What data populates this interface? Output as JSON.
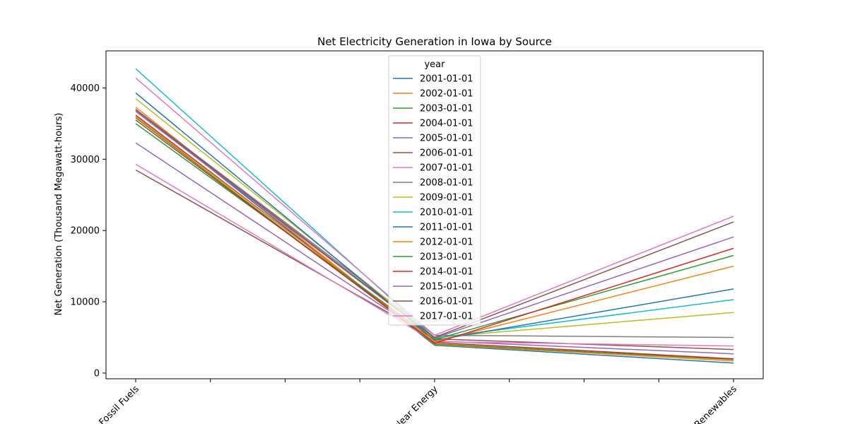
{
  "chart_data": {
    "type": "line",
    "title": "Net Electricity Generation in Iowa by Source",
    "xlabel": "",
    "ylabel": "Net Generation (Thousand Megawatt-hours)",
    "categories": [
      "Fossil Fuels",
      "Nuclear Energy",
      "Renewables"
    ],
    "ylim": [
      -800,
      45200
    ],
    "yticks": [
      0,
      10000,
      20000,
      30000,
      40000
    ],
    "grid": false,
    "legend": {
      "title": "year",
      "placement": "top-center"
    },
    "series": [
      {
        "name": "2001-01-01",
        "color": "#1f77b4",
        "values": [
          37000,
          3900,
          1400
        ]
      },
      {
        "name": "2002-01-01",
        "color": "#ff7f0e",
        "values": [
          37300,
          4000,
          1700
        ]
      },
      {
        "name": "2003-01-01",
        "color": "#2ca02c",
        "values": [
          35800,
          4100,
          1900
        ]
      },
      {
        "name": "2004-01-01",
        "color": "#d62728",
        "values": [
          36200,
          4300,
          2000
        ]
      },
      {
        "name": "2005-01-01",
        "color": "#9467bd",
        "values": [
          32300,
          4500,
          2700
        ]
      },
      {
        "name": "2006-01-01",
        "color": "#8c564b",
        "values": [
          28500,
          4800,
          3300
        ]
      },
      {
        "name": "2007-01-01",
        "color": "#e377c2",
        "values": [
          29300,
          4400,
          3800
        ]
      },
      {
        "name": "2008-01-01",
        "color": "#7f7f7f",
        "values": [
          37000,
          5300,
          5000
        ]
      },
      {
        "name": "2009-01-01",
        "color": "#bcbd22",
        "values": [
          38500,
          5000,
          8500
        ]
      },
      {
        "name": "2010-01-01",
        "color": "#17becf",
        "values": [
          42700,
          4900,
          10300
        ]
      },
      {
        "name": "2011-01-01",
        "color": "#1f77b4",
        "values": [
          39300,
          4600,
          11800
        ]
      },
      {
        "name": "2012-01-01",
        "color": "#ff7f0e",
        "values": [
          36000,
          4400,
          15000
        ]
      },
      {
        "name": "2013-01-01",
        "color": "#2ca02c",
        "values": [
          35000,
          4700,
          16500
        ]
      },
      {
        "name": "2014-01-01",
        "color": "#d62728",
        "values": [
          35500,
          4200,
          17500
        ]
      },
      {
        "name": "2015-01-01",
        "color": "#9467bd",
        "values": [
          36700,
          4900,
          19100
        ]
      },
      {
        "name": "2016-01-01",
        "color": "#8c564b",
        "values": [
          36900,
          5000,
          21200
        ]
      },
      {
        "name": "2017-01-01",
        "color": "#e377c2",
        "values": [
          41400,
          5300,
          22000
        ]
      }
    ]
  }
}
